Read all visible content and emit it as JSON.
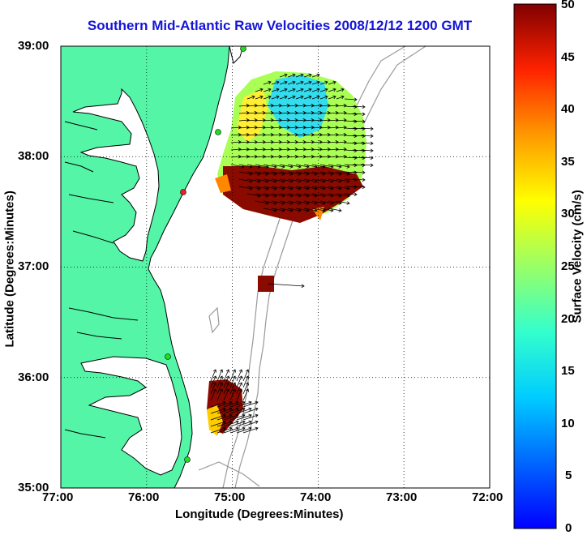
{
  "title": "Southern Mid-Atlantic Raw Velocities 2008/12/12 1200 GMT",
  "map": {
    "xlabel": "Longitude (Degrees:Minutes)",
    "ylabel": "Latitude (Degrees:Minutes)",
    "x_ticks": [
      "77:00",
      "76:00",
      "75:00",
      "74:00",
      "73:00",
      "72:00"
    ],
    "y_ticks": [
      "39:00",
      "38:00",
      "37:00",
      "36:00",
      "35:00"
    ],
    "lon_range": [
      -77,
      -72
    ],
    "lat_range": [
      35,
      39
    ],
    "land_color": "#55f5a8",
    "coast_color": "#000000",
    "bathymetry_color": "#999999"
  },
  "colorbar": {
    "label": "Surface Velocity (cm/s)",
    "ticks": [
      "0",
      "5",
      "10",
      "15",
      "20",
      "25",
      "30",
      "35",
      "40",
      "45",
      "50"
    ],
    "range": [
      0,
      50
    ],
    "colormap": "jet"
  },
  "stations": {
    "color": "#22dd22",
    "alt_color": "#ee2222"
  }
}
